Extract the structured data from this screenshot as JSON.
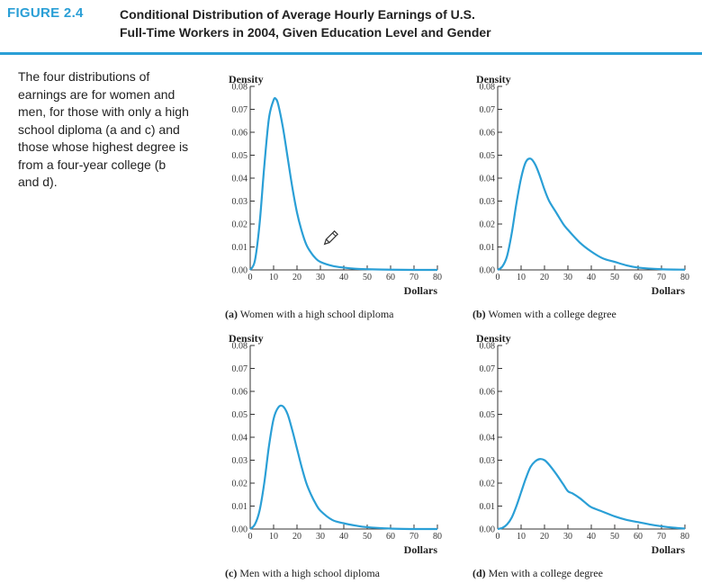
{
  "figure": {
    "label": "FIGURE 2.4",
    "title_line1": "Conditional Distribution of Average Hourly Earnings of U.S.",
    "title_line2": "Full-Time Workers in 2004, Given Education Level and Gender",
    "caption": "The four distributions of earnings are for women and men, for those with only a high school diploma (a and c) and those whose highest degree is from a four-year college (b and d).",
    "accent_color": "#2a9fd6",
    "curve_color": "#2a9fd6"
  },
  "chart_data": [
    {
      "type": "line",
      "id": "a",
      "letter": "(a)",
      "subtitle": "Women with a high school diploma",
      "ylabel": "Density",
      "xlabel": "Dollars",
      "xlim": [
        0,
        80
      ],
      "ylim": [
        0,
        0.08
      ],
      "xticks": [
        0,
        10,
        20,
        30,
        40,
        50,
        60,
        70,
        80
      ],
      "yticks": [
        "0.00",
        "0.01",
        "0.02",
        "0.03",
        "0.04",
        "0.05",
        "0.06",
        "0.07",
        "0.08"
      ],
      "x": [
        0,
        2,
        4,
        6,
        8,
        10,
        11,
        12,
        14,
        16,
        18,
        20,
        22,
        24,
        26,
        28,
        30,
        35,
        40,
        45,
        50,
        60,
        70,
        80
      ],
      "y": [
        0,
        0.004,
        0.02,
        0.045,
        0.066,
        0.074,
        0.0745,
        0.072,
        0.062,
        0.049,
        0.036,
        0.025,
        0.017,
        0.011,
        0.0075,
        0.005,
        0.0035,
        0.0018,
        0.001,
        0.0005,
        0.0003,
        0.0001,
        0,
        0
      ]
    },
    {
      "type": "line",
      "id": "b",
      "letter": "(b)",
      "subtitle": "Women with a college degree",
      "ylabel": "Density",
      "xlabel": "Dollars",
      "xlim": [
        0,
        80
      ],
      "ylim": [
        0,
        0.08
      ],
      "xticks": [
        0,
        10,
        20,
        30,
        40,
        50,
        60,
        70,
        80
      ],
      "yticks": [
        "0.00",
        "0.01",
        "0.02",
        "0.03",
        "0.04",
        "0.05",
        "0.06",
        "0.07",
        "0.08"
      ],
      "x": [
        0,
        2,
        4,
        6,
        8,
        10,
        12,
        14,
        16,
        18,
        20,
        22,
        25,
        28,
        30,
        35,
        40,
        45,
        50,
        55,
        60,
        70,
        80
      ],
      "y": [
        0,
        0.0015,
        0.006,
        0.016,
        0.029,
        0.04,
        0.047,
        0.0485,
        0.046,
        0.041,
        0.035,
        0.03,
        0.025,
        0.02,
        0.0175,
        0.012,
        0.008,
        0.005,
        0.0035,
        0.002,
        0.001,
        0.0003,
        0.0001
      ]
    },
    {
      "type": "line",
      "id": "c",
      "letter": "(c)",
      "subtitle": "Men with a high school diploma",
      "ylabel": "Density",
      "xlabel": "Dollars",
      "xlim": [
        0,
        80
      ],
      "ylim": [
        0,
        0.08
      ],
      "xticks": [
        0,
        10,
        20,
        30,
        40,
        50,
        60,
        70,
        80
      ],
      "yticks": [
        "0.00",
        "0.01",
        "0.02",
        "0.03",
        "0.04",
        "0.05",
        "0.06",
        "0.07",
        "0.08"
      ],
      "x": [
        0,
        2,
        4,
        6,
        8,
        10,
        12,
        14,
        16,
        18,
        20,
        22,
        24,
        26,
        28,
        30,
        35,
        40,
        45,
        50,
        60,
        70,
        80
      ],
      "y": [
        0,
        0.002,
        0.008,
        0.02,
        0.036,
        0.048,
        0.053,
        0.0535,
        0.05,
        0.043,
        0.035,
        0.027,
        0.02,
        0.015,
        0.011,
        0.008,
        0.004,
        0.0025,
        0.0015,
        0.0008,
        0.0002,
        0,
        0
      ]
    },
    {
      "type": "line",
      "id": "d",
      "letter": "(d)",
      "subtitle": "Men with a college degree",
      "ylabel": "Density",
      "xlabel": "Dollars",
      "xlim": [
        0,
        80
      ],
      "ylim": [
        0,
        0.08
      ],
      "xticks": [
        0,
        10,
        20,
        30,
        40,
        50,
        60,
        70,
        80
      ],
      "yticks": [
        "0.00",
        "0.01",
        "0.02",
        "0.03",
        "0.04",
        "0.05",
        "0.06",
        "0.07",
        "0.08"
      ],
      "x": [
        0,
        2,
        4,
        6,
        8,
        10,
        12,
        14,
        16,
        18,
        20,
        22,
        25,
        28,
        30,
        32,
        35,
        38,
        40,
        45,
        50,
        55,
        60,
        65,
        70,
        75,
        80
      ],
      "y": [
        0,
        0.0005,
        0.002,
        0.005,
        0.01,
        0.016,
        0.022,
        0.027,
        0.0295,
        0.0305,
        0.03,
        0.028,
        0.024,
        0.0195,
        0.0165,
        0.0155,
        0.0135,
        0.011,
        0.0095,
        0.0075,
        0.0055,
        0.004,
        0.003,
        0.002,
        0.0012,
        0.0006,
        0.0002
      ]
    }
  ]
}
